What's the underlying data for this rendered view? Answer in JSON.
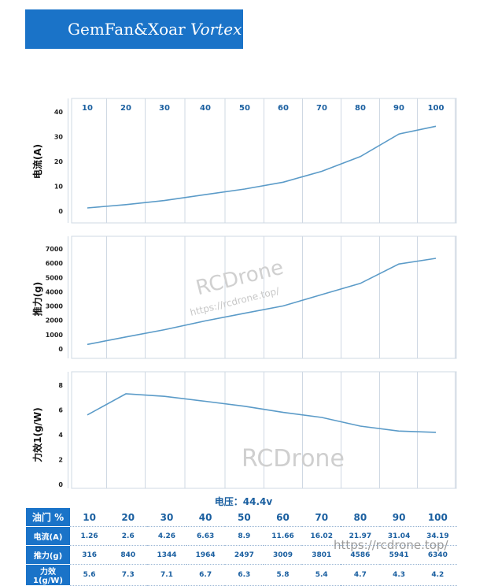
{
  "banner": {
    "brand": "GemFan&Xoar",
    "model": "Vortex"
  },
  "voltage_label": "电压：44.4v",
  "watermarks": {
    "logo": "RCDrone",
    "url": "https://rcdrone.top/"
  },
  "colors": {
    "line": "#5b9bc8",
    "grid": "#cfd8e3",
    "header_bg": "#1a73c8",
    "text": "#1a5fa0"
  },
  "chart_data": [
    {
      "type": "line",
      "x": [
        10,
        20,
        30,
        40,
        50,
        60,
        70,
        80,
        90,
        100
      ],
      "series": [
        {
          "values": [
            1.26,
            2.6,
            4.26,
            6.63,
            8.9,
            11.66,
            16.02,
            21.97,
            31.04,
            34.19
          ]
        }
      ],
      "ylabel": "电流(A)",
      "ylim": [
        0,
        40
      ],
      "yticks": [
        "0",
        "10",
        "20",
        "30",
        "40"
      ],
      "xticks": [
        "10",
        "20",
        "30",
        "40",
        "50",
        "60",
        "70",
        "80",
        "90",
        "100"
      ],
      "grid": true
    },
    {
      "type": "line",
      "x": [
        10,
        20,
        30,
        40,
        50,
        60,
        70,
        80,
        90,
        100
      ],
      "series": [
        {
          "values": [
            316,
            840,
            1344,
            1964,
            2497,
            3009,
            3801,
            4586,
            5941,
            6340
          ]
        }
      ],
      "ylabel": "推力(g)",
      "ylim": [
        0,
        7000
      ],
      "yticks": [
        "0",
        "1000",
        "2000",
        "3000",
        "4000",
        "5000",
        "6000",
        "7000"
      ],
      "grid": true
    },
    {
      "type": "line",
      "x": [
        10,
        20,
        30,
        40,
        50,
        60,
        70,
        80,
        90,
        100
      ],
      "series": [
        {
          "values": [
            5.6,
            7.3,
            7.1,
            6.7,
            6.3,
            5.8,
            5.4,
            4.7,
            4.3,
            4.2
          ]
        }
      ],
      "ylabel": "力效1(g/W)",
      "ylim": [
        0,
        8
      ],
      "yticks": [
        "0",
        "2",
        "4",
        "6",
        "8"
      ],
      "grid": true
    }
  ],
  "table": {
    "rows": [
      {
        "header": "油门 %",
        "cells": [
          "10",
          "20",
          "30",
          "40",
          "50",
          "60",
          "70",
          "80",
          "90",
          "100"
        ]
      },
      {
        "header": "电流(A)",
        "cells": [
          "1.26",
          "2.6",
          "4.26",
          "6.63",
          "8.9",
          "11.66",
          "16.02",
          "21.97",
          "31.04",
          "34.19"
        ]
      },
      {
        "header": "推力(g)",
        "cells": [
          "316",
          "840",
          "1344",
          "1964",
          "2497",
          "3009",
          "3801",
          "4586",
          "5941",
          "6340"
        ]
      },
      {
        "header": "力效1(g/W)",
        "cells": [
          "5.6",
          "7.3",
          "7.1",
          "6.7",
          "6.3",
          "5.8",
          "5.4",
          "4.7",
          "4.3",
          "4.2"
        ]
      }
    ]
  }
}
